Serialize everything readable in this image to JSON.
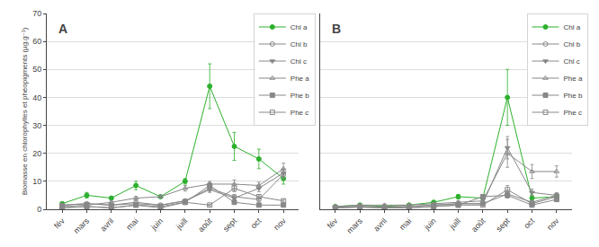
{
  "chart_data": [
    {
      "type": "line",
      "title": "A",
      "ylabel": "Biomasse en chlorophylles et phéopigments (µg.g⁻¹)",
      "categories": [
        "fév",
        "mars",
        "avril",
        "mai",
        "juin",
        "juill",
        "août",
        "sept",
        "oct",
        "nov"
      ],
      "series": [
        {
          "name": "Chl a",
          "color": "#2db02d",
          "marker": "circle",
          "line_style": "solid",
          "values": [
            2.0,
            5.0,
            4.0,
            8.5,
            4.5,
            10.0,
            44.0,
            22.5,
            18.0,
            11.0
          ],
          "errors": [
            0.5,
            1.0,
            0.5,
            1.5,
            0.5,
            1.0,
            8.0,
            5.0,
            3.5,
            2.0
          ]
        },
        {
          "name": "Chl b",
          "color": "#888888",
          "marker": "circle-open",
          "line_style": "solid",
          "values": [
            1.5,
            2.0,
            1.5,
            2.5,
            1.5,
            3.0,
            7.5,
            4.5,
            3.5,
            12.5
          ],
          "errors": [
            0.3,
            0.4,
            0.3,
            0.5,
            0.3,
            0.5,
            1.0,
            0.8,
            0.5,
            1.5
          ]
        },
        {
          "name": "Chl c",
          "color": "#888888",
          "marker": "triangle-down",
          "line_style": "solid",
          "values": [
            1.5,
            2.0,
            1.5,
            2.0,
            1.5,
            3.0,
            7.0,
            4.0,
            7.5,
            13.0
          ],
          "errors": [
            0.3,
            0.4,
            0.3,
            0.4,
            0.3,
            0.5,
            1.0,
            0.8,
            1.2,
            1.5
          ]
        },
        {
          "name": "Phe a",
          "color": "#888888",
          "marker": "triangle-up-open",
          "line_style": "solid",
          "values": [
            1.0,
            1.5,
            2.5,
            4.0,
            4.5,
            7.5,
            9.0,
            9.0,
            8.5,
            14.5
          ],
          "errors": [
            0.2,
            0.3,
            0.4,
            0.6,
            0.5,
            1.0,
            1.0,
            1.5,
            1.2,
            2.0
          ]
        },
        {
          "name": "Phe b",
          "color": "#888888",
          "marker": "square",
          "line_style": "solid",
          "values": [
            0.5,
            1.0,
            0.5,
            1.5,
            0.5,
            2.5,
            8.5,
            2.5,
            1.5,
            1.5
          ],
          "errors": [
            0.1,
            0.2,
            0.1,
            0.3,
            0.1,
            0.4,
            1.0,
            0.4,
            0.3,
            0.3
          ]
        },
        {
          "name": "Phe c",
          "color": "#888888",
          "marker": "square-open",
          "line_style": "solid",
          "values": [
            0.5,
            1.0,
            0.5,
            1.5,
            1.0,
            2.5,
            1.5,
            7.5,
            4.5,
            3.0
          ],
          "errors": [
            0.1,
            0.2,
            0.1,
            0.3,
            0.2,
            0.4,
            0.3,
            1.2,
            0.7,
            0.5
          ]
        }
      ],
      "ylim": [
        0,
        70
      ],
      "yticks": [
        0,
        10,
        20,
        30,
        40,
        50,
        60,
        70
      ],
      "grid": true,
      "legend": "upper right"
    },
    {
      "type": "line",
      "title": "B",
      "categories": [
        "fév",
        "mars",
        "avril",
        "mai",
        "juin",
        "juill",
        "août",
        "sept",
        "oct",
        "nov"
      ],
      "series": [
        {
          "name": "Chl a",
          "color": "#2db02d",
          "marker": "circle",
          "line_style": "solid",
          "values": [
            1.0,
            1.5,
            1.0,
            1.5,
            2.5,
            4.5,
            4.0,
            40.0,
            4.0,
            4.5
          ],
          "errors": [
            0.3,
            0.4,
            0.3,
            0.4,
            0.5,
            0.8,
            0.8,
            10.0,
            1.0,
            1.0
          ]
        },
        {
          "name": "Chl b",
          "color": "#888888",
          "marker": "circle-open",
          "line_style": "solid",
          "values": [
            0.8,
            1.0,
            0.8,
            1.0,
            1.5,
            2.0,
            2.0,
            5.5,
            2.5,
            5.0
          ],
          "errors": [
            0.2,
            0.2,
            0.2,
            0.2,
            0.3,
            0.4,
            0.4,
            1.0,
            0.5,
            0.8
          ]
        },
        {
          "name": "Chl c",
          "color": "#888888",
          "marker": "triangle-down",
          "line_style": "solid",
          "values": [
            0.8,
            1.0,
            0.8,
            1.0,
            1.5,
            2.0,
            2.0,
            22.0,
            6.0,
            5.0
          ],
          "errors": [
            0.2,
            0.2,
            0.2,
            0.2,
            0.3,
            0.4,
            0.4,
            4.0,
            1.2,
            0.8
          ]
        },
        {
          "name": "Phe a",
          "color": "#888888",
          "marker": "triangle-up-open",
          "line_style": "solid",
          "values": [
            1.0,
            1.5,
            1.5,
            1.5,
            2.0,
            2.5,
            3.0,
            20.0,
            13.5,
            13.5
          ],
          "errors": [
            0.2,
            0.3,
            0.3,
            0.3,
            0.4,
            0.5,
            0.6,
            5.0,
            2.5,
            2.0
          ]
        },
        {
          "name": "Phe b",
          "color": "#888888",
          "marker": "square",
          "line_style": "solid",
          "values": [
            0.5,
            0.8,
            0.5,
            0.5,
            1.0,
            1.5,
            4.5,
            5.0,
            1.5,
            3.5
          ],
          "errors": [
            0.1,
            0.2,
            0.1,
            0.1,
            0.2,
            0.3,
            0.8,
            1.0,
            0.3,
            0.6
          ]
        },
        {
          "name": "Phe c",
          "color": "#888888",
          "marker": "square-open",
          "line_style": "solid",
          "values": [
            0.5,
            0.8,
            0.5,
            0.5,
            1.0,
            1.5,
            1.5,
            7.0,
            2.0,
            4.5
          ],
          "errors": [
            0.1,
            0.2,
            0.1,
            0.1,
            0.2,
            0.3,
            0.3,
            1.5,
            0.4,
            0.7
          ]
        }
      ],
      "ylim": [
        0,
        70
      ],
      "yticks": [
        0,
        10,
        20,
        30,
        40,
        50,
        60,
        70
      ],
      "grid": true,
      "legend": "upper right",
      "tick_labels": "x"
    }
  ]
}
